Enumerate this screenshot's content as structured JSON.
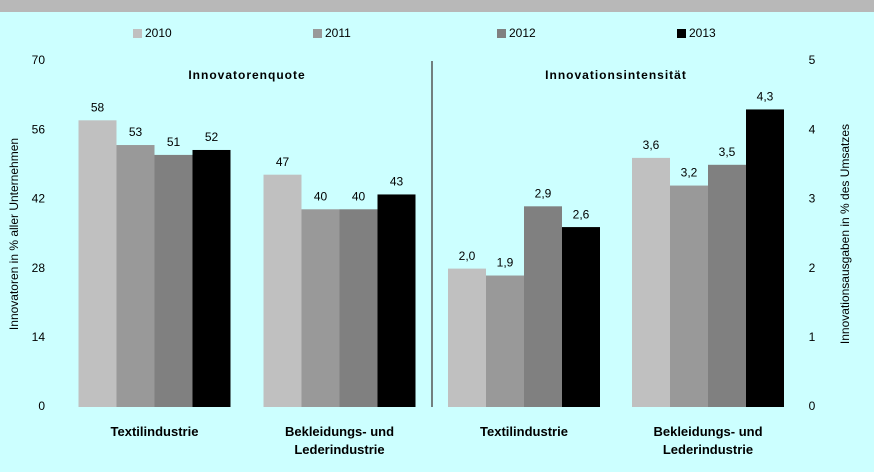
{
  "chart_data": [
    {
      "type": "bar",
      "title": "Innovatorenquote",
      "categories": [
        "Textilindustrie",
        "Bekleidungs- und Lederindustrie"
      ],
      "series": [
        {
          "name": "2010",
          "color": "#c0c0c0",
          "values": [
            58,
            47
          ]
        },
        {
          "name": "2011",
          "color": "#999999",
          "values": [
            53,
            40
          ]
        },
        {
          "name": "2012",
          "color": "#808080",
          "values": [
            51,
            40
          ]
        },
        {
          "name": "2013",
          "color": "#000000",
          "values": [
            52,
            43
          ]
        }
      ],
      "ylabel": "Innovatoren in % aller Unternehmen",
      "ylim": [
        0,
        70
      ],
      "yticks": [
        0,
        14,
        28,
        42,
        56,
        70
      ]
    },
    {
      "type": "bar",
      "title": "Innovationsintensität",
      "categories": [
        "Textilindustrie",
        "Bekleidungs- und Lederindustrie"
      ],
      "series": [
        {
          "color": "#c0c0c0",
          "axis": "y2",
          "values": [
            2.0,
            3.6
          ],
          "value_labels": [
            "2,0",
            "3,6"
          ]
        },
        {
          "color": "#999999",
          "axis": "y2",
          "values": [
            1.9,
            3.2
          ],
          "value_labels": [
            "1,9",
            "3,2"
          ]
        },
        {
          "color": "#808080",
          "axis": "y2",
          "values": [
            2.9,
            3.5
          ],
          "value_labels": [
            "2,9",
            "3,5"
          ]
        },
        {
          "color": "#000000",
          "axis": "y2",
          "values": [
            2.6,
            4.3
          ],
          "value_labels": [
            "2,6",
            "4,3"
          ]
        }
      ],
      "y2label": "Innovationsausgaben in % des Umsatzes",
      "y2lim": [
        0,
        5
      ],
      "y2ticks": [
        0,
        1,
        2,
        3,
        4,
        5
      ]
    }
  ]
}
